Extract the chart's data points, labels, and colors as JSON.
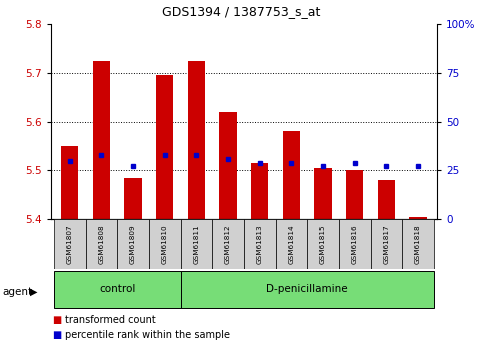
{
  "title": "GDS1394 / 1387753_s_at",
  "samples": [
    "GSM61807",
    "GSM61808",
    "GSM61809",
    "GSM61810",
    "GSM61811",
    "GSM61812",
    "GSM61813",
    "GSM61814",
    "GSM61815",
    "GSM61816",
    "GSM61817",
    "GSM61818"
  ],
  "bar_values": [
    5.55,
    5.725,
    5.485,
    5.695,
    5.725,
    5.62,
    5.515,
    5.58,
    5.505,
    5.5,
    5.48,
    5.405
  ],
  "bar_base": 5.4,
  "percentile_as_pct": [
    30,
    33,
    27,
    33,
    33,
    31,
    29,
    29,
    27,
    29,
    27,
    27
  ],
  "ylim": [
    5.4,
    5.8
  ],
  "yticks_left": [
    5.4,
    5.5,
    5.6,
    5.7,
    5.8
  ],
  "yticks_right": [
    0,
    25,
    50,
    75,
    100
  ],
  "bar_color": "#CC0000",
  "dot_color": "#0000CC",
  "control_samples": 4,
  "control_label": "control",
  "treatment_label": "D-penicillamine",
  "group_box_color": "#77DD77",
  "ylabel_right_color": "#0000CC",
  "ylabel_left_color": "#CC0000",
  "bar_width": 0.55
}
